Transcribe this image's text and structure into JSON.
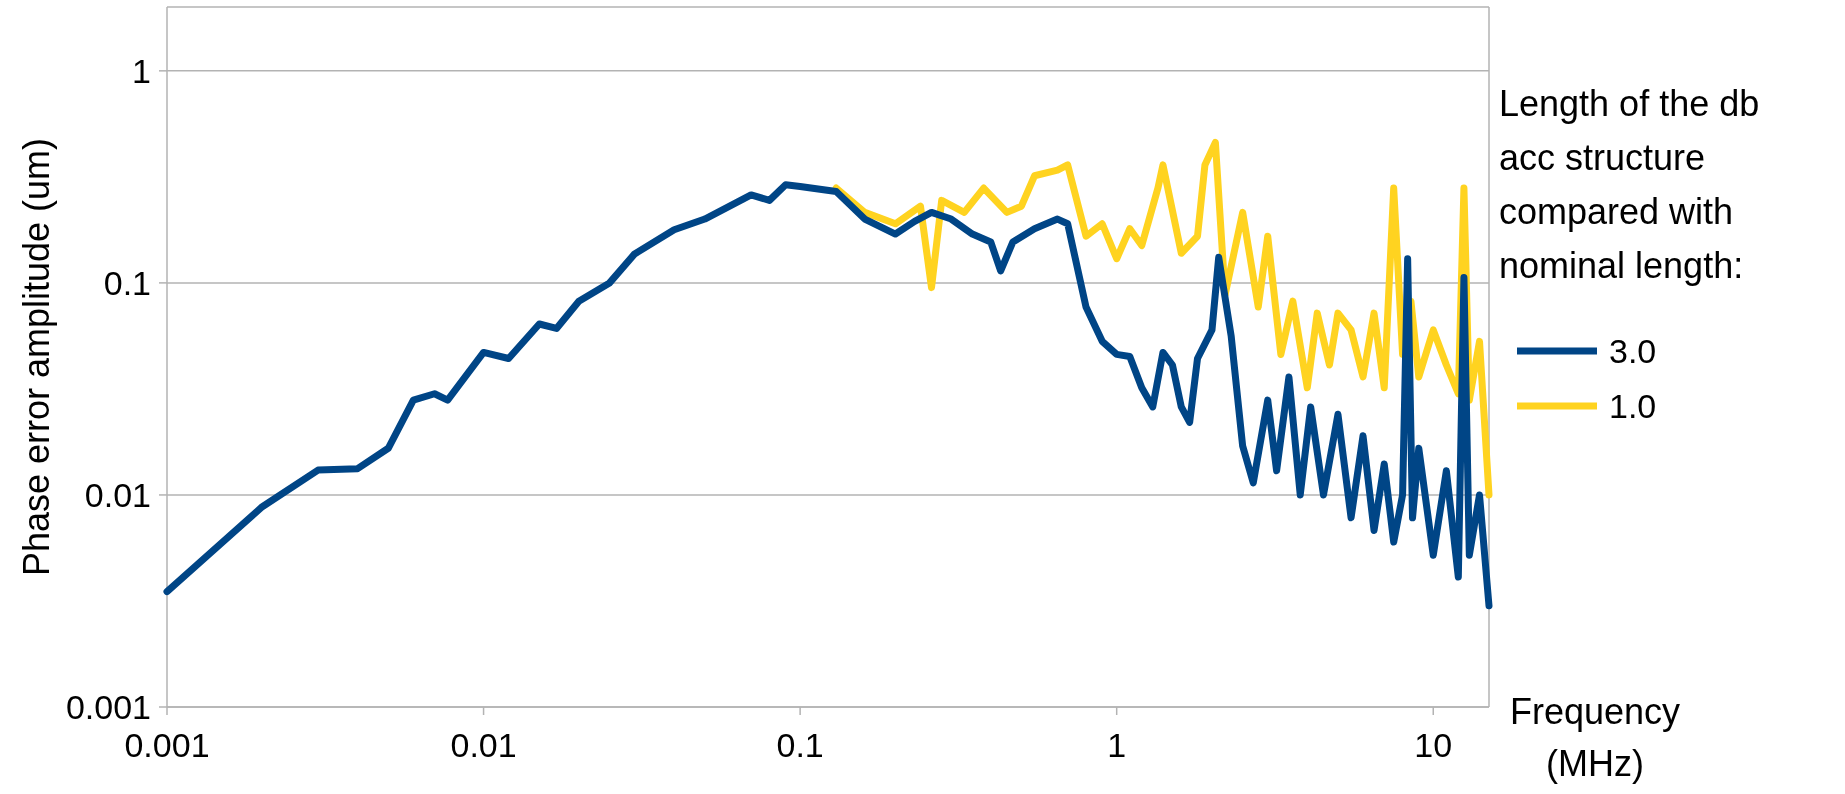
{
  "chart_data": {
    "type": "line",
    "xlabel": "Frequency (MHz)",
    "ylabel": "Phase error amplitude (um)",
    "legend_title": "Length of the db acc structure compared with nominal length:",
    "log": "xy",
    "grid": "y",
    "legend": "right",
    "line_style": "solid",
    "xlim": [
      0.001,
      15
    ],
    "ylim": [
      0.001,
      2
    ],
    "xticks": [
      0.001,
      0.01,
      0.1,
      1,
      10
    ],
    "yticks": [
      0.001,
      0.01,
      0.1,
      1
    ],
    "series": [
      {
        "name": "3.0",
        "color": "#004586",
        "x": [
          0.001,
          0.002,
          0.003,
          0.004,
          0.005,
          0.006,
          0.007,
          0.0077,
          0.01,
          0.012,
          0.015,
          0.017,
          0.02,
          0.025,
          0.03,
          0.04,
          0.05,
          0.07,
          0.08,
          0.09,
          0.1,
          0.13,
          0.16,
          0.2,
          0.23,
          0.26,
          0.3,
          0.35,
          0.4,
          0.43,
          0.47,
          0.55,
          0.65,
          0.7,
          0.8,
          0.9,
          1.0,
          1.1,
          1.2,
          1.3,
          1.4,
          1.5,
          1.6,
          1.7,
          1.8,
          2.0,
          2.1,
          2.3,
          2.5,
          2.7,
          3.0,
          3.2,
          3.5,
          3.8,
          4.1,
          4.5,
          5,
          5.5,
          6,
          6.5,
          7,
          7.5,
          8,
          8.3,
          8.6,
          9,
          10,
          11,
          12,
          12.5,
          13,
          14,
          15
        ],
        "values": [
          0.0035,
          0.0088,
          0.0131,
          0.0133,
          0.0166,
          0.028,
          0.03,
          0.028,
          0.047,
          0.044,
          0.064,
          0.061,
          0.082,
          0.1,
          0.137,
          0.178,
          0.2,
          0.26,
          0.245,
          0.29,
          0.285,
          0.27,
          0.2,
          0.17,
          0.195,
          0.215,
          0.2,
          0.17,
          0.156,
          0.114,
          0.156,
          0.18,
          0.2,
          0.19,
          0.077,
          0.053,
          0.046,
          0.045,
          0.032,
          0.026,
          0.047,
          0.041,
          0.026,
          0.022,
          0.044,
          0.06,
          0.132,
          0.056,
          0.017,
          0.0114,
          0.028,
          0.013,
          0.036,
          0.01,
          0.026,
          0.01,
          0.024,
          0.0078,
          0.019,
          0.0068,
          0.014,
          0.006,
          0.01,
          0.13,
          0.0078,
          0.0166,
          0.0052,
          0.013,
          0.0041,
          0.106,
          0.0052,
          0.01,
          0.003
        ]
      },
      {
        "name": "1.0",
        "color": "#ffd320",
        "x": [
          0.13,
          0.16,
          0.2,
          0.24,
          0.26,
          0.28,
          0.33,
          0.38,
          0.45,
          0.5,
          0.55,
          0.65,
          0.7,
          0.8,
          0.9,
          1.0,
          1.1,
          1.2,
          1.35,
          1.4,
          1.6,
          1.8,
          1.9,
          2.05,
          2.2,
          2.5,
          2.8,
          3.0,
          3.3,
          3.6,
          4.0,
          4.3,
          4.7,
          5,
          5.5,
          6,
          6.5,
          7,
          7.5,
          8,
          8.5,
          9,
          10,
          11,
          12,
          12.5,
          13,
          14,
          15
        ],
        "values": [
          0.28,
          0.215,
          0.19,
          0.23,
          0.095,
          0.245,
          0.215,
          0.28,
          0.215,
          0.23,
          0.32,
          0.34,
          0.36,
          0.166,
          0.19,
          0.13,
          0.18,
          0.15,
          0.28,
          0.36,
          0.138,
          0.166,
          0.36,
          0.46,
          0.088,
          0.215,
          0.077,
          0.166,
          0.046,
          0.082,
          0.032,
          0.072,
          0.041,
          0.072,
          0.06,
          0.036,
          0.072,
          0.032,
          0.28,
          0.046,
          0.082,
          0.036,
          0.06,
          0.041,
          0.03,
          0.28,
          0.028,
          0.053,
          0.01
        ]
      }
    ]
  }
}
